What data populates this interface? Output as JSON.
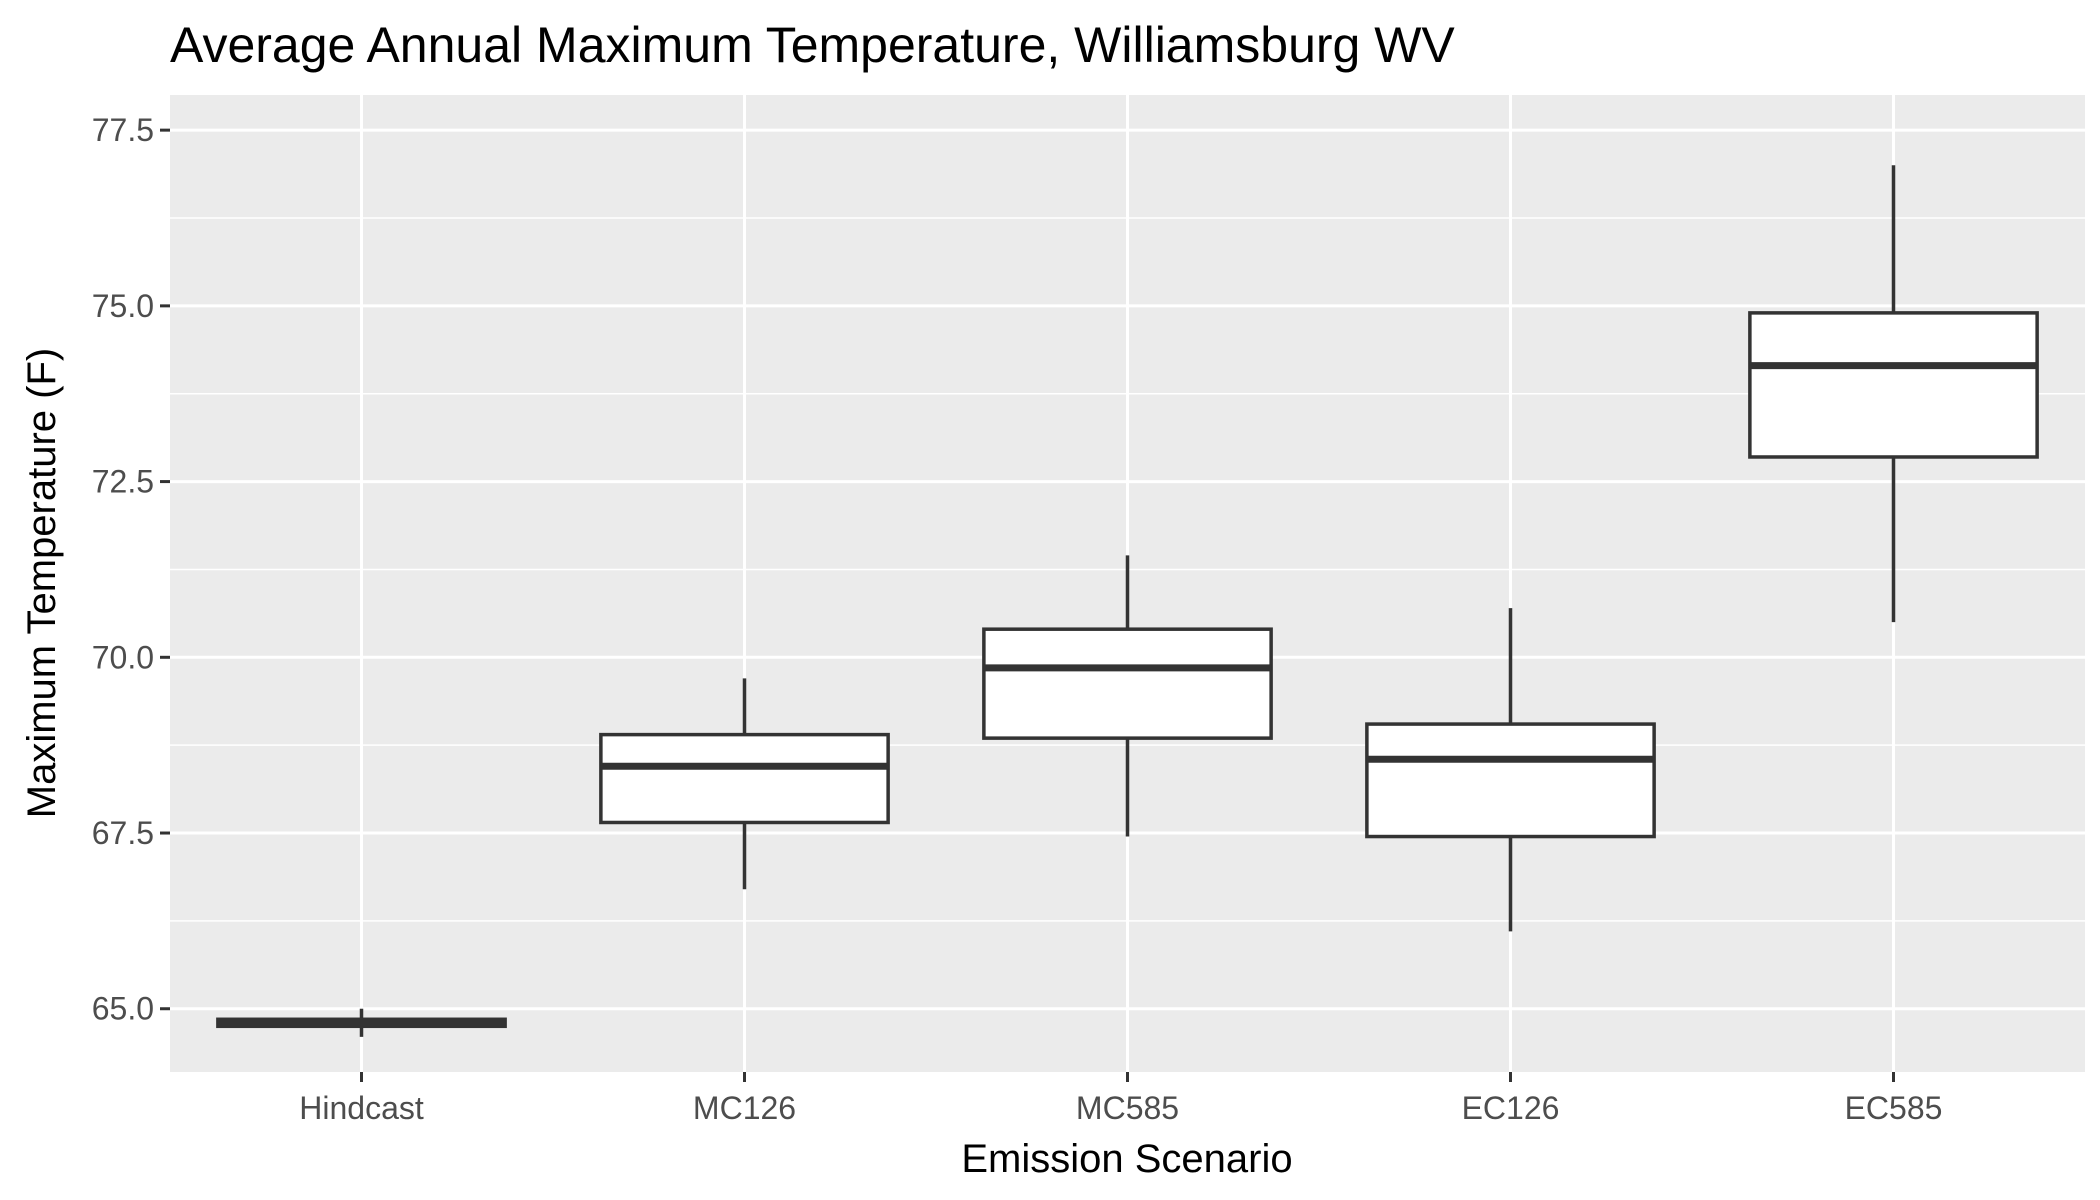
{
  "chart_data": {
    "type": "boxplot",
    "title": "Average Annual Maximum Temperature, Williamsburg WV",
    "xlabel": "Emission Scenario",
    "ylabel": "Maximum Temperature (F)",
    "ylim": [
      64.1,
      78.0
    ],
    "yticks": [
      "65.0",
      "67.5",
      "70.0",
      "72.5",
      "75.0",
      "77.5"
    ],
    "ytick_values": [
      65.0,
      67.5,
      70.0,
      72.5,
      75.0,
      77.5
    ],
    "grid": true,
    "categories": [
      "Hindcast",
      "MC126",
      "MC585",
      "EC126",
      "EC585"
    ],
    "boxes": [
      {
        "category": "Hindcast",
        "min": 64.6,
        "q1": 64.75,
        "median": 64.8,
        "q3": 64.85,
        "max": 65.0
      },
      {
        "category": "MC126",
        "min": 66.7,
        "q1": 67.65,
        "median": 68.45,
        "q3": 68.9,
        "max": 69.7
      },
      {
        "category": "MC585",
        "min": 67.45,
        "q1": 68.85,
        "median": 69.85,
        "q3": 70.4,
        "max": 71.45
      },
      {
        "category": "EC126",
        "min": 66.1,
        "q1": 67.45,
        "median": 68.55,
        "q3": 69.05,
        "max": 70.7
      },
      {
        "category": "EC585",
        "min": 70.5,
        "q1": 72.85,
        "median": 74.15,
        "q3": 74.9,
        "max": 77.0
      }
    ],
    "colors": {
      "panel": "#ebebeb",
      "grid": "#ffffff",
      "box_fill": "#ffffff",
      "box_stroke": "#333333"
    }
  }
}
